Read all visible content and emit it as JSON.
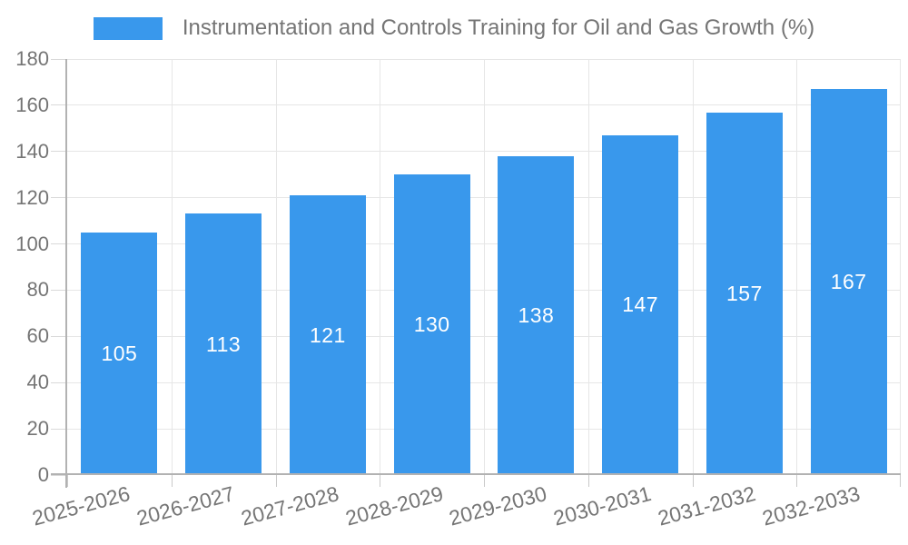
{
  "legend": {
    "label": "Instrumentation and Controls Training for Oil and Gas Growth (%)"
  },
  "chart_data": {
    "type": "bar",
    "title": "Instrumentation and Controls Training for Oil and Gas Growth (%)",
    "categories": [
      "2025-2026",
      "2026-2027",
      "2027-2028",
      "2028-2029",
      "2029-2030",
      "2030-2031",
      "2031-2032",
      "2032-2033"
    ],
    "values": [
      105,
      113,
      121,
      130,
      138,
      147,
      157,
      167
    ],
    "value_labels": "inside-center",
    "xlabel": "",
    "ylabel": "",
    "ylim": [
      0,
      180
    ],
    "ytick_step": 20,
    "yticks": [
      0,
      20,
      40,
      60,
      80,
      100,
      120,
      140,
      160,
      180
    ],
    "grid": true,
    "legend_position": "top-center",
    "colors": {
      "bar": "#3998EC",
      "axis_text": "#757575",
      "value_label": "#FFFFFF",
      "grid": "#E6E6E6",
      "tick": "#D9D9D9",
      "x_tick": "#C9C9C9",
      "axis_line": "#B2B2B2"
    }
  }
}
